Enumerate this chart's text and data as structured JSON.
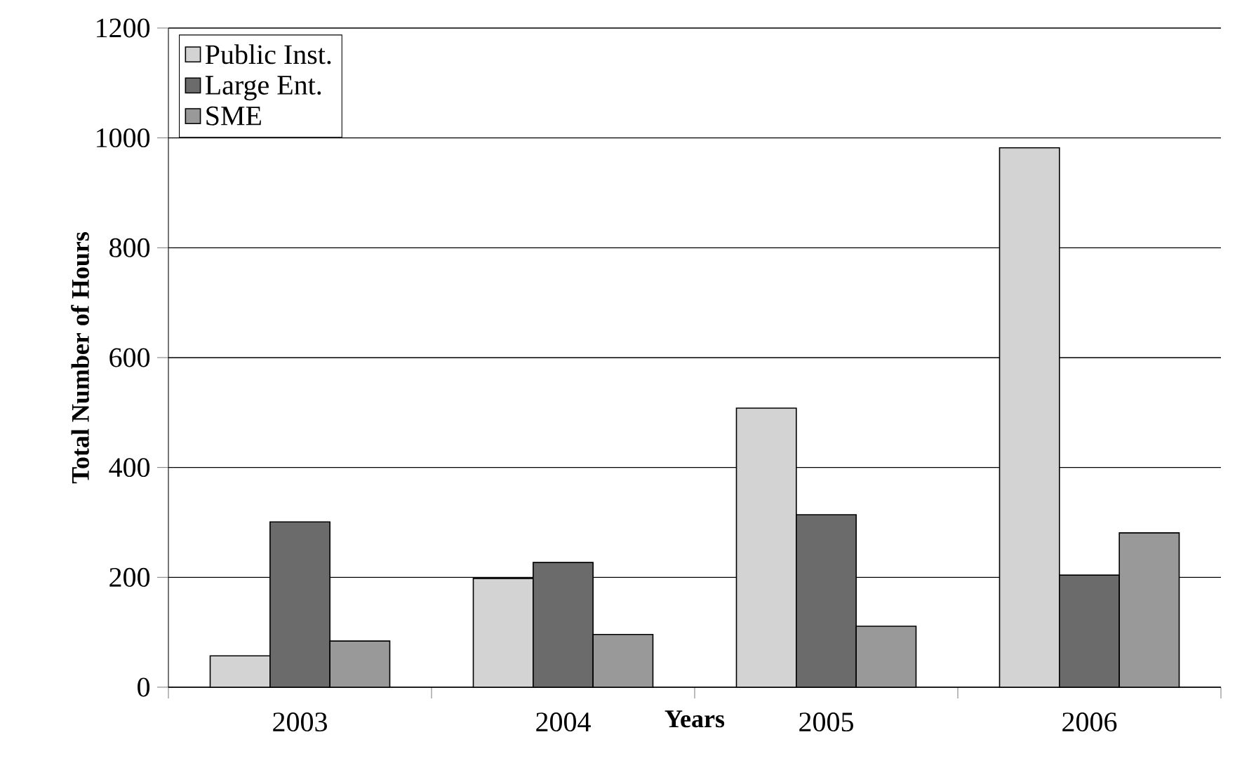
{
  "chart_data": {
    "type": "bar",
    "xlabel": "Years",
    "ylabel": "Total Number of Hours",
    "categories": [
      "2003",
      "2004",
      "2005",
      "2006"
    ],
    "series": [
      {
        "name": "Public Inst.",
        "color": "#d3d3d3",
        "values": [
          57,
          198,
          508,
          982
        ]
      },
      {
        "name": "Large Ent.",
        "color": "#6b6b6b",
        "values": [
          301,
          227,
          314,
          204
        ]
      },
      {
        "name": "SME",
        "color": "#999999",
        "values": [
          84,
          96,
          111,
          281
        ]
      }
    ],
    "ylim": [
      0,
      1200
    ],
    "yticks": [
      0,
      200,
      400,
      600,
      800,
      1000,
      1200
    ],
    "grid": "y",
    "legend": "top left"
  }
}
